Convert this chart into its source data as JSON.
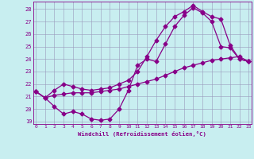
{
  "xlabel": "Windchill (Refroidissement éolien,°C)",
  "bg_color": "#c8eef0",
  "line_color": "#880088",
  "grid_color": "#9999bb",
  "ylim": [
    18.8,
    28.6
  ],
  "xlim": [
    -0.3,
    23.3
  ],
  "yticks": [
    19,
    20,
    21,
    22,
    23,
    24,
    25,
    26,
    27,
    28
  ],
  "xticks": [
    0,
    1,
    2,
    3,
    4,
    5,
    6,
    7,
    8,
    9,
    10,
    11,
    12,
    13,
    14,
    15,
    16,
    17,
    18,
    19,
    20,
    21,
    22,
    23
  ],
  "line1_x": [
    0,
    1,
    2,
    3,
    4,
    5,
    6,
    7,
    8,
    9,
    10,
    11,
    12,
    13,
    14,
    15,
    16,
    17,
    18,
    19,
    20,
    21,
    22,
    23
  ],
  "line1_y": [
    21.4,
    20.9,
    20.2,
    19.6,
    19.8,
    19.6,
    19.2,
    19.1,
    19.2,
    20.0,
    21.5,
    23.5,
    24.0,
    23.8,
    25.2,
    26.6,
    27.5,
    28.1,
    27.7,
    27.0,
    25.0,
    24.9,
    24.0,
    23.8
  ],
  "line2_x": [
    0,
    1,
    2,
    3,
    4,
    5,
    6,
    7,
    8,
    9,
    10,
    11,
    12,
    13,
    14,
    15,
    16,
    17,
    18,
    19,
    20,
    21,
    22,
    23
  ],
  "line2_y": [
    21.4,
    20.9,
    21.1,
    21.2,
    21.3,
    21.3,
    21.3,
    21.4,
    21.5,
    21.6,
    21.8,
    22.0,
    22.2,
    22.4,
    22.7,
    23.0,
    23.3,
    23.5,
    23.7,
    23.9,
    24.0,
    24.1,
    24.2,
    23.8
  ],
  "line3_x": [
    0,
    1,
    2,
    3,
    4,
    5,
    6,
    7,
    8,
    9,
    10,
    11,
    12,
    13,
    14,
    15,
    16,
    17,
    18,
    19,
    20,
    21,
    22,
    23
  ],
  "line3_y": [
    21.4,
    20.9,
    21.5,
    22.0,
    21.8,
    21.6,
    21.5,
    21.6,
    21.7,
    22.0,
    22.3,
    23.0,
    24.2,
    25.5,
    26.6,
    27.4,
    27.8,
    28.3,
    27.8,
    27.4,
    27.2,
    25.1,
    24.0,
    23.8
  ]
}
